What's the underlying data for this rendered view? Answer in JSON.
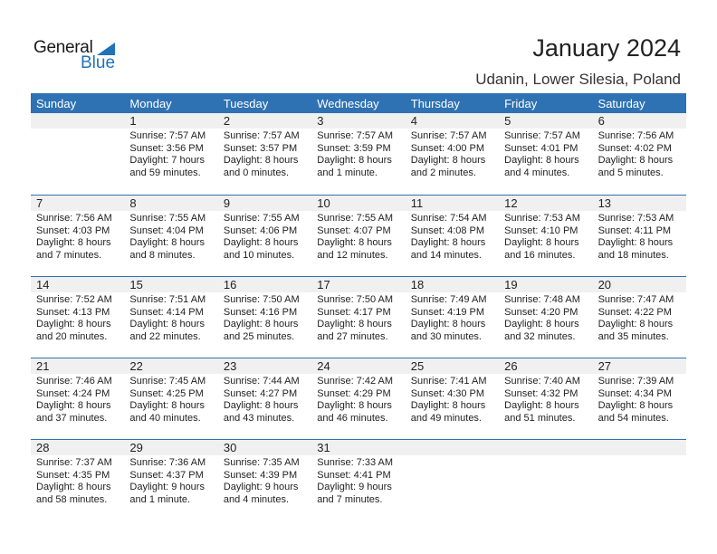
{
  "logo": {
    "text1": "General",
    "text2": "Blue"
  },
  "header": {
    "title": "January 2024",
    "location": "Udanin, Lower Silesia, Poland"
  },
  "colors": {
    "accent": "#2e72b3",
    "band": "#f0f0f0"
  },
  "weekdays": [
    "Sunday",
    "Monday",
    "Tuesday",
    "Wednesday",
    "Thursday",
    "Friday",
    "Saturday"
  ],
  "weeks": [
    [
      null,
      {
        "day": "1",
        "sunrise": "Sunrise: 7:57 AM",
        "sunset": "Sunset: 3:56 PM",
        "daylight1": "Daylight: 7 hours",
        "daylight2": "and 59 minutes."
      },
      {
        "day": "2",
        "sunrise": "Sunrise: 7:57 AM",
        "sunset": "Sunset: 3:57 PM",
        "daylight1": "Daylight: 8 hours",
        "daylight2": "and 0 minutes."
      },
      {
        "day": "3",
        "sunrise": "Sunrise: 7:57 AM",
        "sunset": "Sunset: 3:59 PM",
        "daylight1": "Daylight: 8 hours",
        "daylight2": "and 1 minute."
      },
      {
        "day": "4",
        "sunrise": "Sunrise: 7:57 AM",
        "sunset": "Sunset: 4:00 PM",
        "daylight1": "Daylight: 8 hours",
        "daylight2": "and 2 minutes."
      },
      {
        "day": "5",
        "sunrise": "Sunrise: 7:57 AM",
        "sunset": "Sunset: 4:01 PM",
        "daylight1": "Daylight: 8 hours",
        "daylight2": "and 4 minutes."
      },
      {
        "day": "6",
        "sunrise": "Sunrise: 7:56 AM",
        "sunset": "Sunset: 4:02 PM",
        "daylight1": "Daylight: 8 hours",
        "daylight2": "and 5 minutes."
      }
    ],
    [
      {
        "day": "7",
        "sunrise": "Sunrise: 7:56 AM",
        "sunset": "Sunset: 4:03 PM",
        "daylight1": "Daylight: 8 hours",
        "daylight2": "and 7 minutes."
      },
      {
        "day": "8",
        "sunrise": "Sunrise: 7:55 AM",
        "sunset": "Sunset: 4:04 PM",
        "daylight1": "Daylight: 8 hours",
        "daylight2": "and 8 minutes."
      },
      {
        "day": "9",
        "sunrise": "Sunrise: 7:55 AM",
        "sunset": "Sunset: 4:06 PM",
        "daylight1": "Daylight: 8 hours",
        "daylight2": "and 10 minutes."
      },
      {
        "day": "10",
        "sunrise": "Sunrise: 7:55 AM",
        "sunset": "Sunset: 4:07 PM",
        "daylight1": "Daylight: 8 hours",
        "daylight2": "and 12 minutes."
      },
      {
        "day": "11",
        "sunrise": "Sunrise: 7:54 AM",
        "sunset": "Sunset: 4:08 PM",
        "daylight1": "Daylight: 8 hours",
        "daylight2": "and 14 minutes."
      },
      {
        "day": "12",
        "sunrise": "Sunrise: 7:53 AM",
        "sunset": "Sunset: 4:10 PM",
        "daylight1": "Daylight: 8 hours",
        "daylight2": "and 16 minutes."
      },
      {
        "day": "13",
        "sunrise": "Sunrise: 7:53 AM",
        "sunset": "Sunset: 4:11 PM",
        "daylight1": "Daylight: 8 hours",
        "daylight2": "and 18 minutes."
      }
    ],
    [
      {
        "day": "14",
        "sunrise": "Sunrise: 7:52 AM",
        "sunset": "Sunset: 4:13 PM",
        "daylight1": "Daylight: 8 hours",
        "daylight2": "and 20 minutes."
      },
      {
        "day": "15",
        "sunrise": "Sunrise: 7:51 AM",
        "sunset": "Sunset: 4:14 PM",
        "daylight1": "Daylight: 8 hours",
        "daylight2": "and 22 minutes."
      },
      {
        "day": "16",
        "sunrise": "Sunrise: 7:50 AM",
        "sunset": "Sunset: 4:16 PM",
        "daylight1": "Daylight: 8 hours",
        "daylight2": "and 25 minutes."
      },
      {
        "day": "17",
        "sunrise": "Sunrise: 7:50 AM",
        "sunset": "Sunset: 4:17 PM",
        "daylight1": "Daylight: 8 hours",
        "daylight2": "and 27 minutes."
      },
      {
        "day": "18",
        "sunrise": "Sunrise: 7:49 AM",
        "sunset": "Sunset: 4:19 PM",
        "daylight1": "Daylight: 8 hours",
        "daylight2": "and 30 minutes."
      },
      {
        "day": "19",
        "sunrise": "Sunrise: 7:48 AM",
        "sunset": "Sunset: 4:20 PM",
        "daylight1": "Daylight: 8 hours",
        "daylight2": "and 32 minutes."
      },
      {
        "day": "20",
        "sunrise": "Sunrise: 7:47 AM",
        "sunset": "Sunset: 4:22 PM",
        "daylight1": "Daylight: 8 hours",
        "daylight2": "and 35 minutes."
      }
    ],
    [
      {
        "day": "21",
        "sunrise": "Sunrise: 7:46 AM",
        "sunset": "Sunset: 4:24 PM",
        "daylight1": "Daylight: 8 hours",
        "daylight2": "and 37 minutes."
      },
      {
        "day": "22",
        "sunrise": "Sunrise: 7:45 AM",
        "sunset": "Sunset: 4:25 PM",
        "daylight1": "Daylight: 8 hours",
        "daylight2": "and 40 minutes."
      },
      {
        "day": "23",
        "sunrise": "Sunrise: 7:44 AM",
        "sunset": "Sunset: 4:27 PM",
        "daylight1": "Daylight: 8 hours",
        "daylight2": "and 43 minutes."
      },
      {
        "day": "24",
        "sunrise": "Sunrise: 7:42 AM",
        "sunset": "Sunset: 4:29 PM",
        "daylight1": "Daylight: 8 hours",
        "daylight2": "and 46 minutes."
      },
      {
        "day": "25",
        "sunrise": "Sunrise: 7:41 AM",
        "sunset": "Sunset: 4:30 PM",
        "daylight1": "Daylight: 8 hours",
        "daylight2": "and 49 minutes."
      },
      {
        "day": "26",
        "sunrise": "Sunrise: 7:40 AM",
        "sunset": "Sunset: 4:32 PM",
        "daylight1": "Daylight: 8 hours",
        "daylight2": "and 51 minutes."
      },
      {
        "day": "27",
        "sunrise": "Sunrise: 7:39 AM",
        "sunset": "Sunset: 4:34 PM",
        "daylight1": "Daylight: 8 hours",
        "daylight2": "and 54 minutes."
      }
    ],
    [
      {
        "day": "28",
        "sunrise": "Sunrise: 7:37 AM",
        "sunset": "Sunset: 4:35 PM",
        "daylight1": "Daylight: 8 hours",
        "daylight2": "and 58 minutes."
      },
      {
        "day": "29",
        "sunrise": "Sunrise: 7:36 AM",
        "sunset": "Sunset: 4:37 PM",
        "daylight1": "Daylight: 9 hours",
        "daylight2": "and 1 minute."
      },
      {
        "day": "30",
        "sunrise": "Sunrise: 7:35 AM",
        "sunset": "Sunset: 4:39 PM",
        "daylight1": "Daylight: 9 hours",
        "daylight2": "and 4 minutes."
      },
      {
        "day": "31",
        "sunrise": "Sunrise: 7:33 AM",
        "sunset": "Sunset: 4:41 PM",
        "daylight1": "Daylight: 9 hours",
        "daylight2": "and 7 minutes."
      },
      null,
      null,
      null
    ]
  ]
}
